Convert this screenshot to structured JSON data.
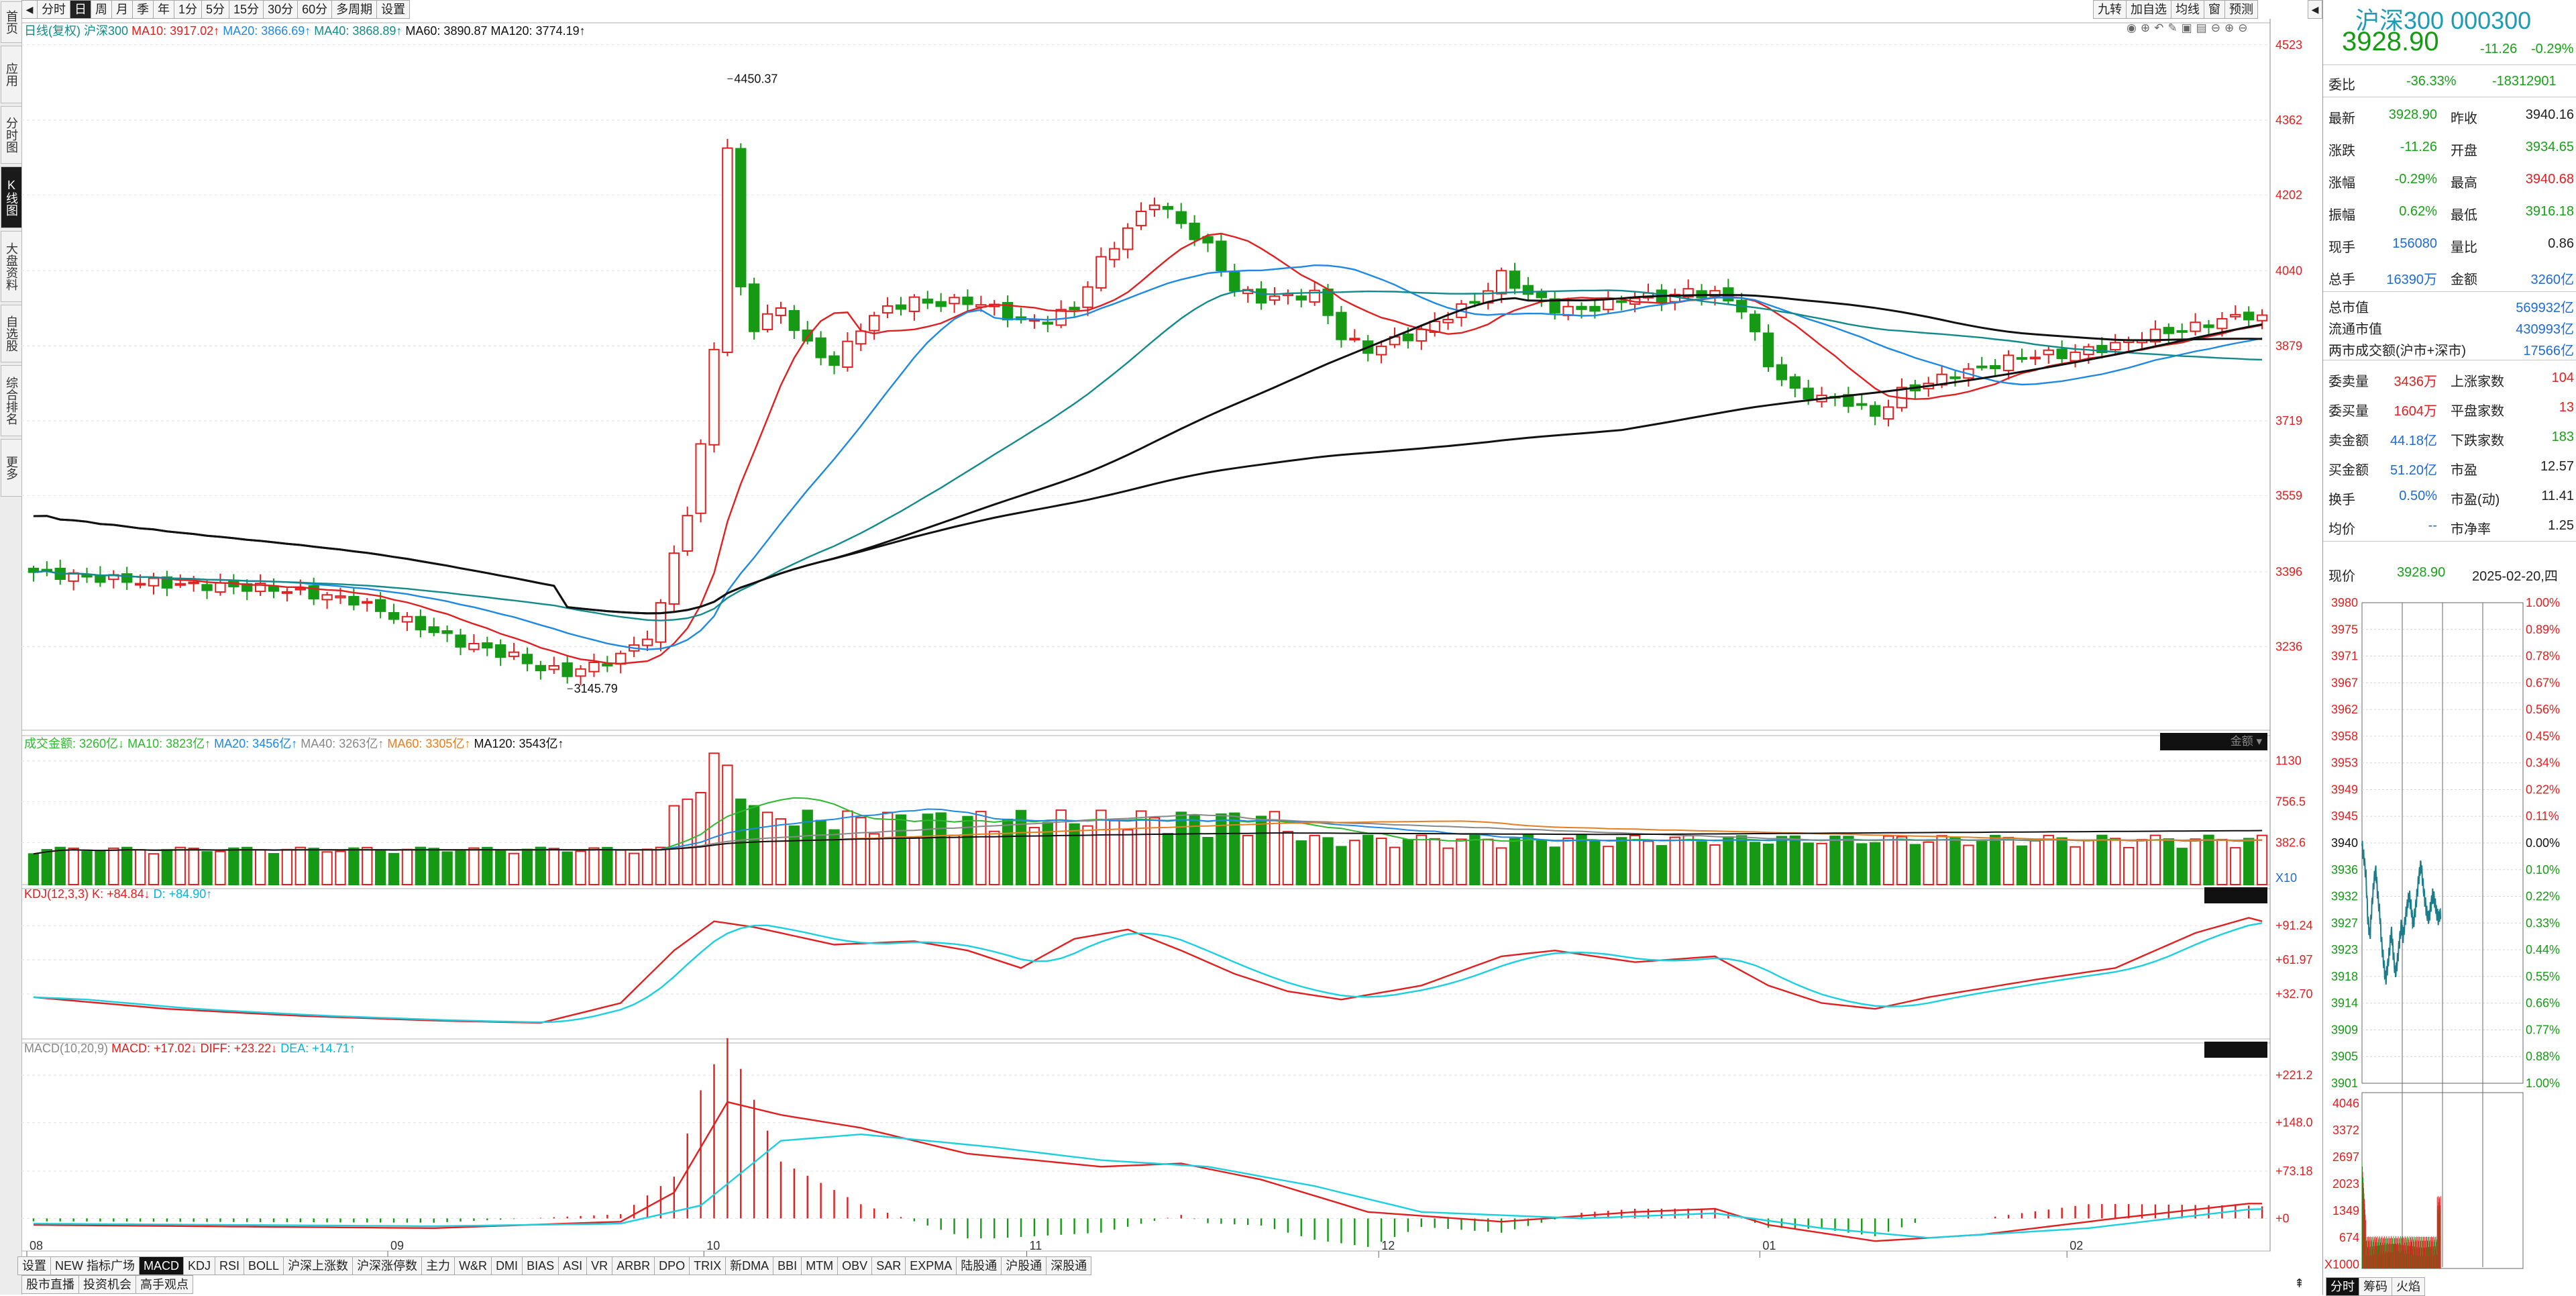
{
  "left_nav": [
    "首页",
    "应用",
    "分时图",
    "K线图",
    "大盘资料",
    "自选股",
    "综合排名",
    "更多"
  ],
  "top_tabs": [
    "分时",
    "日",
    "周",
    "月",
    "季",
    "年",
    "1分",
    "5分",
    "15分",
    "30分",
    "60分",
    "多周期",
    "设置"
  ],
  "top_selected": "日",
  "right_tabs": [
    "九转",
    "加自选",
    "均线",
    "窗",
    "预测"
  ],
  "main_legend": {
    "label": "日线(复权)",
    "name": "沪深300",
    "ma10": "MA10: 3917.02↑",
    "ma20": "MA20: 3866.69↑",
    "ma40": "MA40: 3868.89↑",
    "ma60": "MA60: 3890.87",
    "ma120": "MA120: 3774.19↑"
  },
  "price_axis": [
    "4523",
    "4362",
    "4202",
    "4040",
    "3879",
    "3719",
    "3559",
    "3396",
    "3236"
  ],
  "annotations": {
    "high": "4450.37",
    "low": "3145.79"
  },
  "vol_legend": {
    "label": "成交金额: 3260亿↓",
    "ma10": "MA10: 3823亿↑",
    "ma20": "MA20: 3456亿↑",
    "ma40": "MA40: 3263亿↑",
    "ma60": "MA60: 3305亿↑",
    "ma120": "MA120: 3543亿↑",
    "box": "金额"
  },
  "vol_axis": [
    "1130",
    "756.5",
    "382.6",
    "X10"
  ],
  "kdj_legend": {
    "label": "KDJ(12,3,3)",
    "k": "K: +84.84↓",
    "d": "D: +84.90↑"
  },
  "kdj_axis": [
    "+91.24",
    "+61.97",
    "+32.70"
  ],
  "macd_legend": {
    "label": "MACD(10,20,9)",
    "macd": "MACD: +17.02↓",
    "diff": "DIFF: +23.22↓",
    "dea": "DEA: +14.71↑"
  },
  "macd_axis": [
    "+221.2",
    "+148.0",
    "+73.18",
    "+0"
  ],
  "x_labels": [
    "08",
    "09",
    "10",
    "11",
    "12",
    "01",
    "02"
  ],
  "bottom_indicators": [
    "设置",
    "NEW 指标广场",
    "MACD",
    "KDJ",
    "RSI",
    "BOLL",
    "沪深上涨数",
    "沪深涨停数",
    "主力",
    "W&R",
    "DMI",
    "BIAS",
    "ASI",
    "VR",
    "ARBR",
    "DPO",
    "TRIX",
    "新DMA",
    "BBI",
    "MTM",
    "OBV",
    "SAR",
    "EXPMA",
    "陆股通",
    "沪股通",
    "深股通"
  ],
  "bottom_selected": "MACD",
  "bottom_links": [
    "股市直播",
    "投资机会",
    "高手观点"
  ],
  "panel": {
    "title": "沪深300 000300",
    "price": "3928.90",
    "change": "-11.26",
    "pct": "-0.29%",
    "weibi_label": "委比",
    "weibi": "-36.33%",
    "weicha": "-18312901",
    "rows": [
      [
        "最新",
        "3928.90",
        "昨收",
        "3940.16"
      ],
      [
        "涨跌",
        "-11.26",
        "开盘",
        "3934.65"
      ],
      [
        "涨幅",
        "-0.29%",
        "最高",
        "3940.68"
      ],
      [
        "振幅",
        "0.62%",
        "最低",
        "3916.18"
      ],
      [
        "现手",
        "156080",
        "量比",
        "0.86"
      ],
      [
        "总手",
        "16390万",
        "金额",
        "3260亿"
      ]
    ],
    "caps": [
      [
        "总市值",
        "569932亿"
      ],
      [
        "流通市值",
        "430993亿"
      ],
      [
        "两市成交额(沪市+深市)",
        "17566亿"
      ]
    ],
    "breadth": [
      [
        "委卖量",
        "3436万",
        "上涨家数",
        "104"
      ],
      [
        "委买量",
        "1604万",
        "平盘家数",
        "13"
      ],
      [
        "卖金额",
        "44.18亿",
        "下跌家数",
        "183"
      ],
      [
        "买金额",
        "51.20亿",
        "市盈",
        "12.57"
      ],
      [
        "换手",
        "0.50%",
        "市盈(动)",
        "11.41"
      ],
      [
        "均价",
        "--",
        "市净率",
        "1.25"
      ]
    ],
    "now_label": "现价",
    "now_price": "3928.90",
    "date": "2025-02-20,四",
    "mini_left": [
      "3980",
      "3975",
      "3971",
      "3967",
      "3962",
      "3958",
      "3953",
      "3949",
      "3945",
      "3940",
      "3936",
      "3932",
      "3927",
      "3923",
      "3918",
      "3914",
      "3909",
      "3905",
      "3901"
    ],
    "mini_right": [
      "1.00%",
      "0.89%",
      "0.78%",
      "0.67%",
      "0.56%",
      "0.45%",
      "0.34%",
      "0.22%",
      "0.11%",
      "0.00%",
      "0.10%",
      "0.22%",
      "0.33%",
      "0.44%",
      "0.55%",
      "0.66%",
      "0.77%",
      "0.88%",
      "1.00%"
    ],
    "mini_vol": [
      "4046",
      "3372",
      "2697",
      "2023",
      "1349",
      "674",
      "X1000"
    ],
    "bottom_tabs": [
      "分时",
      "筹码",
      "火焰"
    ]
  },
  "colors": {
    "up": "#e02020",
    "down": "#169a16",
    "ma10": "#e02020",
    "ma20": "#1e88e5",
    "ma40": "#138a8a",
    "ma60": "#111111",
    "kdj_k": "#e02020",
    "kdj_d": "#1ccfe0",
    "panel_title": "#1e9bb5"
  }
}
